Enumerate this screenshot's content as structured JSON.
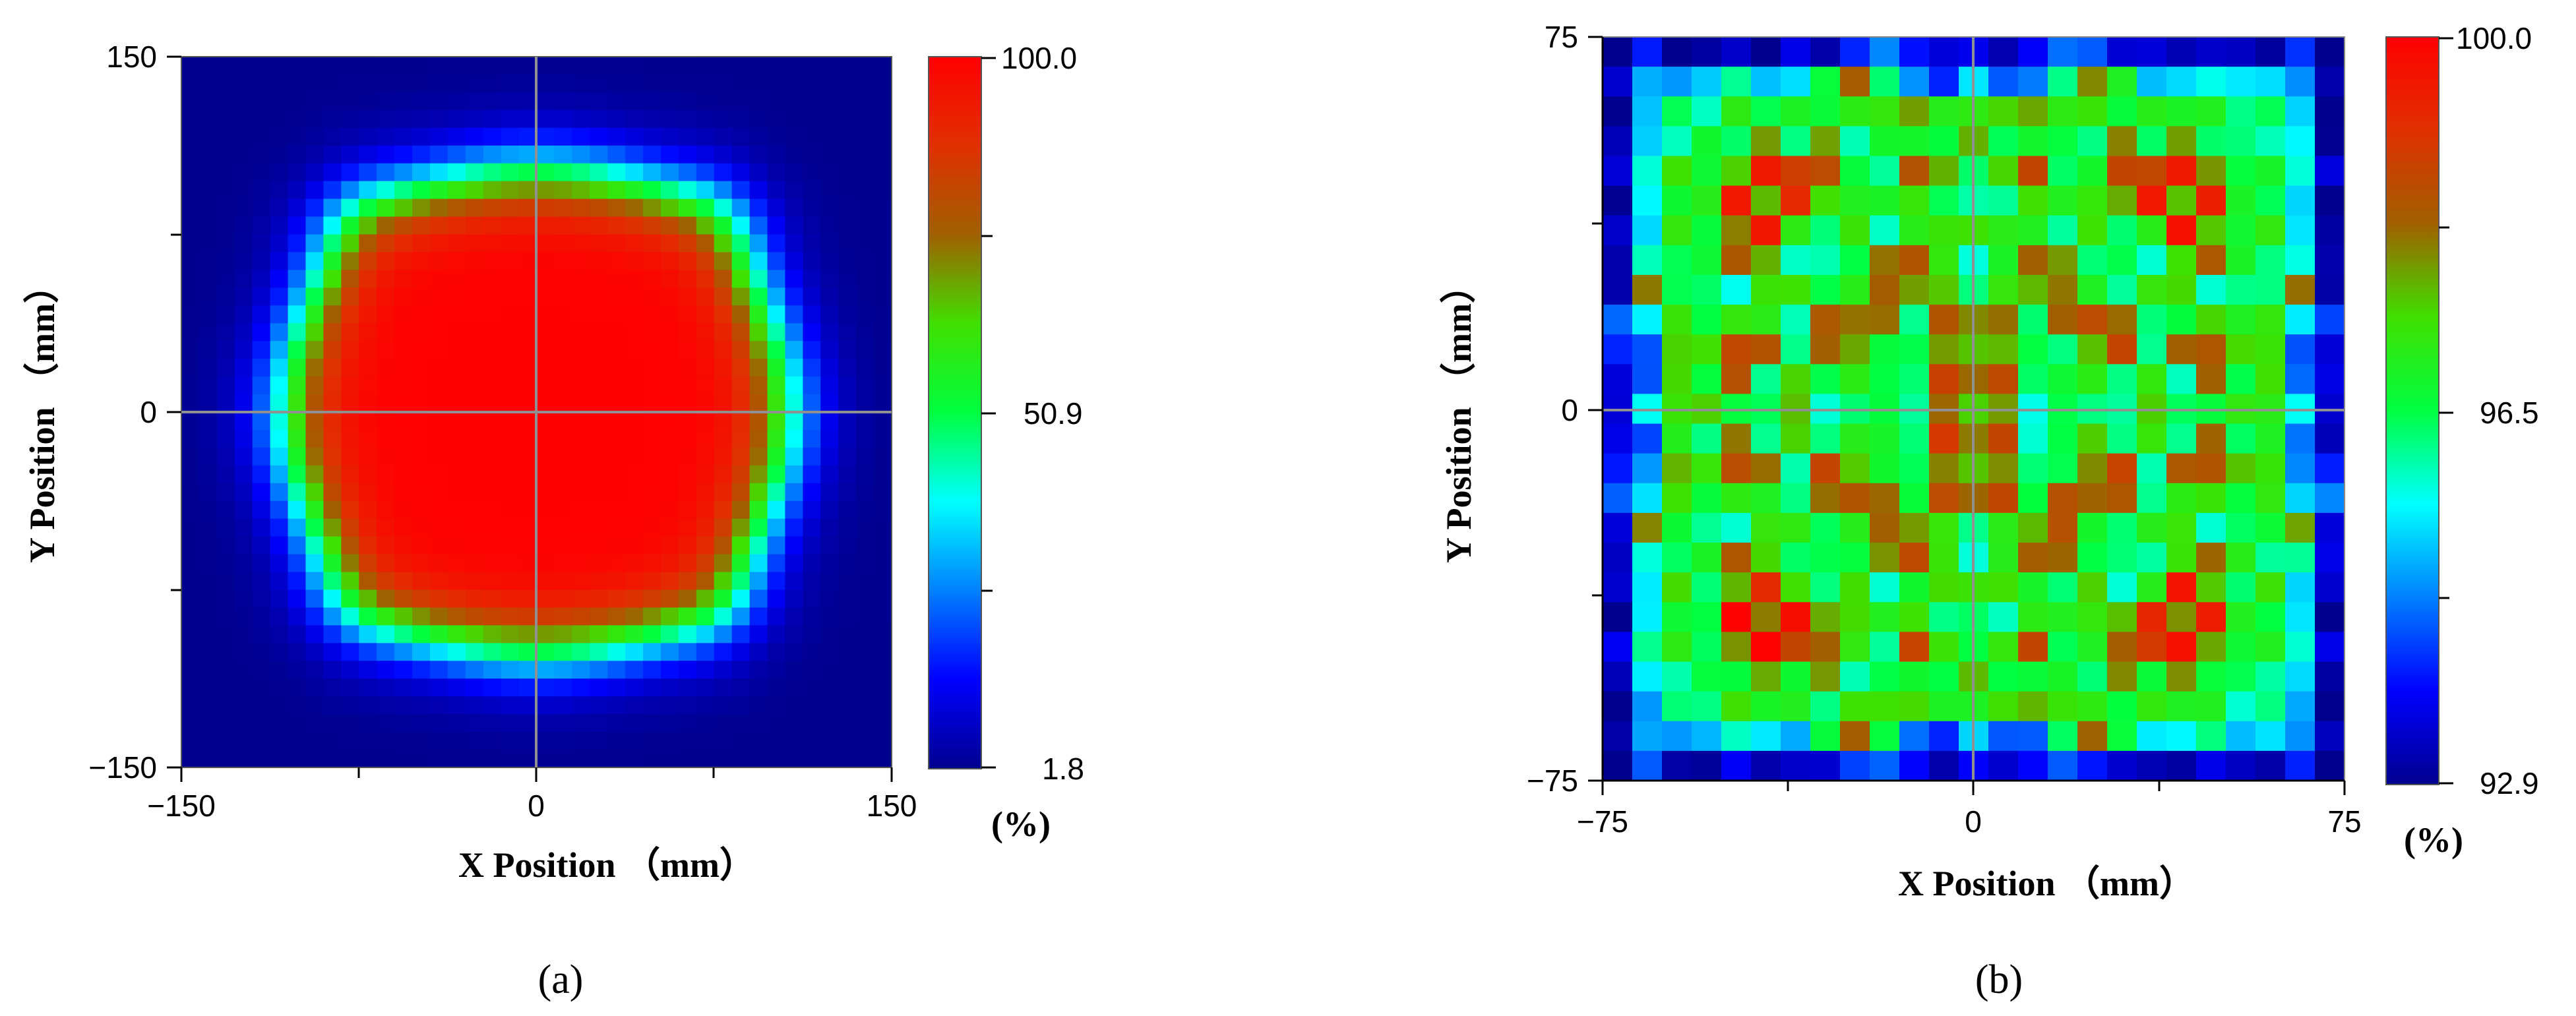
{
  "chart_data": [
    {
      "type": "heatmap",
      "panel_label": "(a)",
      "xlabel": "X Position  （mm）",
      "ylabel": "Y Position  （mm）",
      "xlim": [
        -150,
        150
      ],
      "ylim": [
        -150,
        150
      ],
      "x_ticks": [
        "−150",
        "0",
        "150"
      ],
      "y_ticks": [
        "150",
        "0",
        "−150"
      ],
      "colorbar": {
        "min": 1.8,
        "max": 100.0,
        "labels": [
          "100.0",
          "50.9",
          "1.8"
        ],
        "unit": "(%)"
      },
      "grid_cells": 40,
      "description_values": {
        "plateau_value": 100.0,
        "plateau_half_width_mm": 95,
        "edge_falloff_mm": 35,
        "min_value": 1.8
      }
    },
    {
      "type": "heatmap",
      "panel_label": "(b)",
      "xlabel": "X Position  （mm）",
      "ylabel": "Y Position  （mm）",
      "xlim": [
        -75,
        75
      ],
      "ylim": [
        -75,
        75
      ],
      "x_ticks": [
        "−75",
        "0",
        "75"
      ],
      "y_ticks": [
        "75",
        "0",
        "−75"
      ],
      "colorbar": {
        "min": 92.9,
        "max": 100.0,
        "labels": [
          "100.0",
          "96.5",
          "92.9"
        ],
        "unit": "(%)"
      },
      "grid_cells": 25,
      "description_values": {
        "center_value": 98.3,
        "mean_value": 96.9,
        "min_value": 92.9,
        "max_value": 100.0
      }
    }
  ]
}
